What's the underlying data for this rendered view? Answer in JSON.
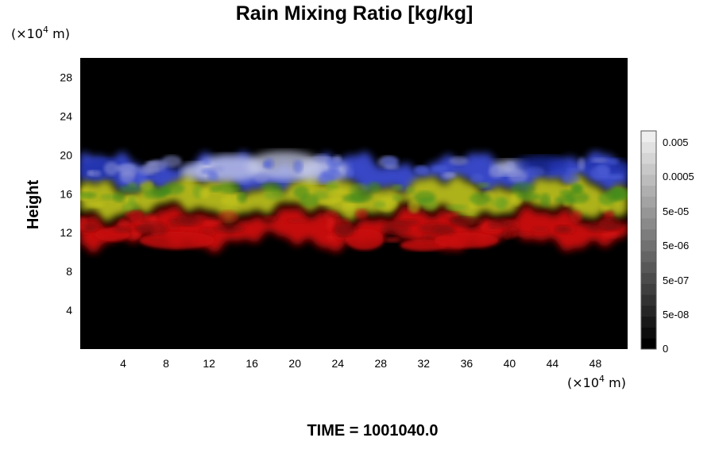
{
  "chart_data": {
    "type": "heatmap",
    "title": "Rain Mixing Ratio [kg/kg]",
    "ylabel": "Height",
    "x_unit_label": "(×10⁴ m)",
    "y_unit_label": "(×10⁴ m)",
    "xlim": [
      0,
      51
    ],
    "ylim": [
      0,
      30
    ],
    "x_ticks": [
      4,
      8,
      12,
      16,
      20,
      24,
      28,
      32,
      36,
      40,
      44,
      48
    ],
    "y_ticks": [
      4,
      8,
      12,
      16,
      20,
      24,
      28
    ],
    "colorbar": {
      "tick_labels": [
        "0.005",
        "0.0005",
        "5e-05",
        "5e-06",
        "5e-07",
        "5e-08",
        "0"
      ],
      "tick_values": [
        0.005,
        0.0005,
        5e-05,
        5e-06,
        5e-07,
        5e-08,
        0
      ],
      "levels": 20,
      "color_low": "#000000",
      "color_high": "#eeeeee"
    },
    "background_color": "#000000",
    "layers": [
      {
        "name": "",
        "color": "#3a4cd0",
        "y_range": [
          17,
          20.5
        ],
        "note": "blue / white band (highest values near x≈14–24)"
      },
      {
        "name": "",
        "color": "#b8bc1c",
        "y_range": [
          14,
          17.5
        ],
        "note": "yellow-green band"
      },
      {
        "name": "",
        "color": "#cf1010",
        "y_range": [
          10.5,
          14
        ],
        "note": "red band"
      }
    ],
    "footer": "TIME = 1001040.0"
  },
  "x_unit_text": "(×10",
  "y_unit_text": "(×10",
  "unit_exp": "4",
  "unit_tail": " m)"
}
